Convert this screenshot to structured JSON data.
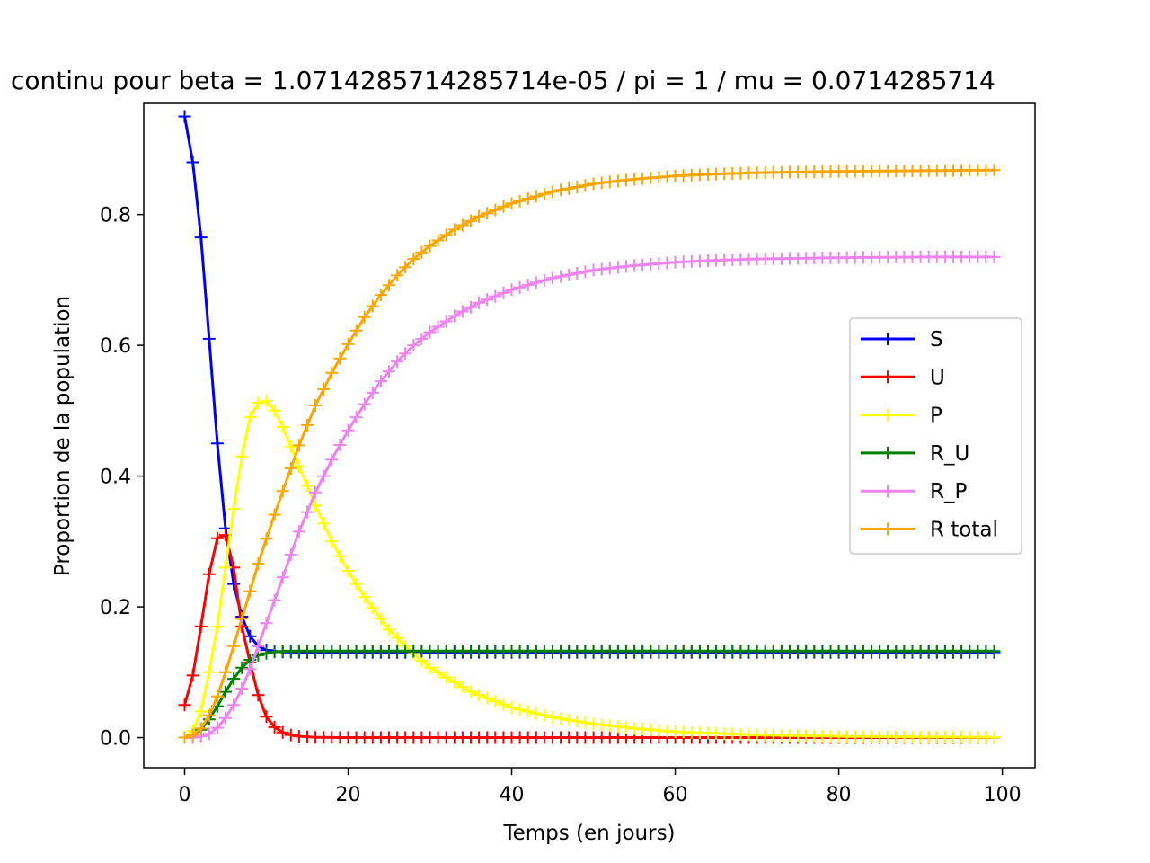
{
  "chart_data": {
    "type": "line",
    "title": "continu pour beta = 1.0714285714285714e-05 / pi = 1 / mu = 0.0714285714",
    "xlabel": "Temps (en jours)",
    "ylabel": "Proportion de la population",
    "xlim": [
      -5,
      104
    ],
    "ylim": [
      -0.046,
      0.97
    ],
    "xticks": [
      0,
      20,
      40,
      60,
      80,
      100
    ],
    "xtick_labels": [
      "0",
      "20",
      "40",
      "60",
      "80",
      "100"
    ],
    "yticks": [
      0.0,
      0.2,
      0.4,
      0.6,
      0.8
    ],
    "ytick_labels": [
      "0.0",
      "0.2",
      "0.4",
      "0.6",
      "0.8"
    ],
    "grid": false,
    "legend_position": "center-right",
    "marker": "+",
    "x": {
      "start": 0,
      "end": 99,
      "step": 1
    },
    "series": [
      {
        "name": "S",
        "color": "#0000ff",
        "points": [
          [
            0,
            0.95
          ],
          [
            1,
            0.88
          ],
          [
            2,
            0.765
          ],
          [
            3,
            0.61
          ],
          [
            4,
            0.45
          ],
          [
            5,
            0.32
          ],
          [
            6,
            0.235
          ],
          [
            7,
            0.185
          ],
          [
            8,
            0.155
          ],
          [
            9,
            0.14
          ],
          [
            10,
            0.134
          ],
          [
            11,
            0.132
          ],
          [
            12,
            0.131
          ],
          [
            15,
            0.1305
          ],
          [
            99,
            0.1305
          ]
        ]
      },
      {
        "name": "U",
        "color": "#ff0000",
        "points": [
          [
            0,
            0.05
          ],
          [
            1,
            0.095
          ],
          [
            2,
            0.17
          ],
          [
            3,
            0.25
          ],
          [
            4,
            0.305
          ],
          [
            5,
            0.31
          ],
          [
            6,
            0.26
          ],
          [
            7,
            0.17
          ],
          [
            8,
            0.115
          ],
          [
            9,
            0.065
          ],
          [
            10,
            0.032
          ],
          [
            11,
            0.016
          ],
          [
            12,
            0.008
          ],
          [
            13,
            0.004
          ],
          [
            14,
            0.002
          ],
          [
            16,
            0.0005
          ],
          [
            20,
            0.0
          ],
          [
            99,
            0.0
          ]
        ]
      },
      {
        "name": "P",
        "color": "#ffff00",
        "points": [
          [
            0,
            0.0
          ],
          [
            1,
            0.01
          ],
          [
            2,
            0.04
          ],
          [
            3,
            0.1
          ],
          [
            4,
            0.17
          ],
          [
            5,
            0.26
          ],
          [
            6,
            0.35
          ],
          [
            7,
            0.43
          ],
          [
            8,
            0.49
          ],
          [
            9,
            0.512
          ],
          [
            10,
            0.515
          ],
          [
            11,
            0.5
          ],
          [
            12,
            0.475
          ],
          [
            13,
            0.445
          ],
          [
            14,
            0.415
          ],
          [
            15,
            0.385
          ],
          [
            16,
            0.355
          ],
          [
            18,
            0.3
          ],
          [
            20,
            0.255
          ],
          [
            22,
            0.215
          ],
          [
            25,
            0.165
          ],
          [
            28,
            0.128
          ],
          [
            30,
            0.107
          ],
          [
            35,
            0.07
          ],
          [
            40,
            0.046
          ],
          [
            45,
            0.031
          ],
          [
            50,
            0.021
          ],
          [
            55,
            0.014
          ],
          [
            60,
            0.009
          ],
          [
            70,
            0.004
          ],
          [
            80,
            0.002
          ],
          [
            90,
            0.001
          ],
          [
            99,
            0.0005
          ]
        ]
      },
      {
        "name": "R_U",
        "color": "#008000",
        "points": [
          [
            0,
            0.0
          ],
          [
            1,
            0.004
          ],
          [
            2,
            0.012
          ],
          [
            3,
            0.028
          ],
          [
            4,
            0.048
          ],
          [
            5,
            0.07
          ],
          [
            6,
            0.09
          ],
          [
            7,
            0.107
          ],
          [
            8,
            0.119
          ],
          [
            9,
            0.126
          ],
          [
            10,
            0.129
          ],
          [
            11,
            0.131
          ],
          [
            12,
            0.132
          ],
          [
            15,
            0.1325
          ],
          [
            99,
            0.1325
          ]
        ]
      },
      {
        "name": "R_P",
        "color": "#ee82ee",
        "points": [
          [
            0,
            0.0
          ],
          [
            1,
            0.0
          ],
          [
            2,
            0.002
          ],
          [
            3,
            0.006
          ],
          [
            4,
            0.015
          ],
          [
            5,
            0.03
          ],
          [
            6,
            0.05
          ],
          [
            7,
            0.075
          ],
          [
            8,
            0.105
          ],
          [
            9,
            0.14
          ],
          [
            10,
            0.175
          ],
          [
            11,
            0.21
          ],
          [
            12,
            0.245
          ],
          [
            13,
            0.28
          ],
          [
            14,
            0.315
          ],
          [
            15,
            0.345
          ],
          [
            16,
            0.375
          ],
          [
            18,
            0.425
          ],
          [
            20,
            0.47
          ],
          [
            22,
            0.51
          ],
          [
            24,
            0.545
          ],
          [
            26,
            0.575
          ],
          [
            28,
            0.6
          ],
          [
            30,
            0.62
          ],
          [
            33,
            0.645
          ],
          [
            36,
            0.665
          ],
          [
            40,
            0.685
          ],
          [
            45,
            0.703
          ],
          [
            50,
            0.715
          ],
          [
            55,
            0.722
          ],
          [
            60,
            0.727
          ],
          [
            65,
            0.73
          ],
          [
            70,
            0.732
          ],
          [
            80,
            0.734
          ],
          [
            90,
            0.735
          ],
          [
            99,
            0.735
          ]
        ]
      },
      {
        "name": "R total",
        "color": "#ffa500",
        "points": [
          [
            0,
            0.0
          ],
          [
            1,
            0.004
          ],
          [
            2,
            0.014
          ],
          [
            3,
            0.034
          ],
          [
            4,
            0.063
          ],
          [
            5,
            0.1
          ],
          [
            6,
            0.14
          ],
          [
            7,
            0.182
          ],
          [
            8,
            0.224
          ],
          [
            9,
            0.266
          ],
          [
            10,
            0.304
          ],
          [
            11,
            0.341
          ],
          [
            12,
            0.377
          ],
          [
            13,
            0.412
          ],
          [
            14,
            0.447
          ],
          [
            15,
            0.478
          ],
          [
            16,
            0.508
          ],
          [
            18,
            0.558
          ],
          [
            20,
            0.602
          ],
          [
            22,
            0.643
          ],
          [
            24,
            0.677
          ],
          [
            26,
            0.707
          ],
          [
            28,
            0.732
          ],
          [
            30,
            0.752
          ],
          [
            33,
            0.777
          ],
          [
            36,
            0.797
          ],
          [
            40,
            0.817
          ],
          [
            45,
            0.835
          ],
          [
            50,
            0.847
          ],
          [
            55,
            0.854
          ],
          [
            60,
            0.859
          ],
          [
            65,
            0.862
          ],
          [
            70,
            0.864
          ],
          [
            80,
            0.866
          ],
          [
            90,
            0.867
          ],
          [
            99,
            0.868
          ]
        ]
      }
    ]
  }
}
